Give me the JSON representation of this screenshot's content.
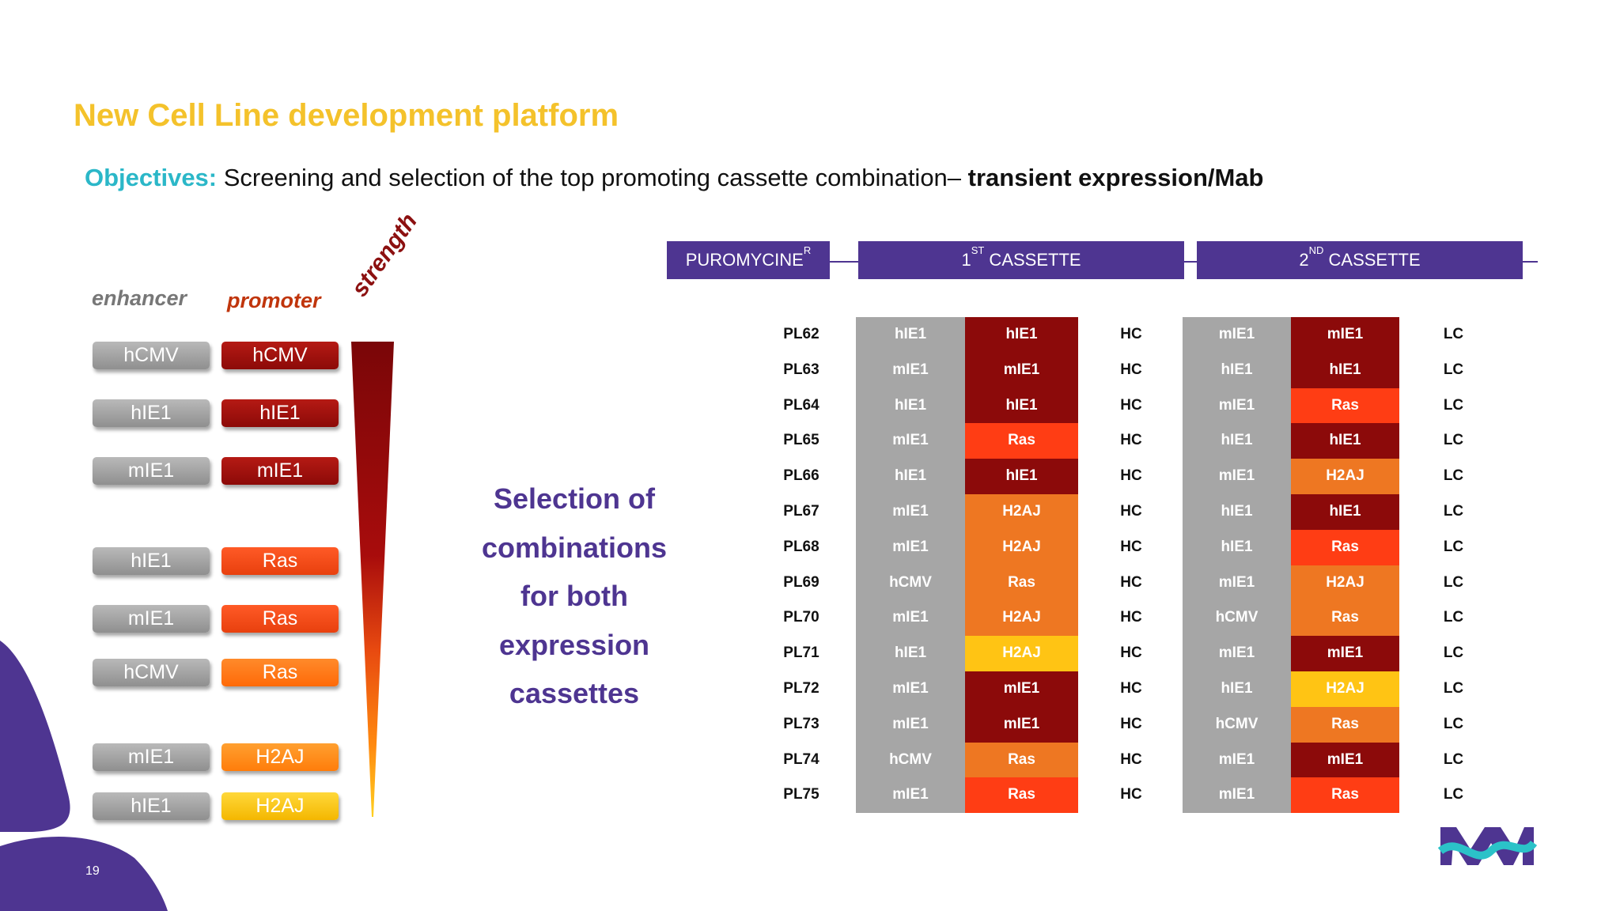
{
  "title": "New Cell Line development platform",
  "objectives": {
    "label": "Objectives:",
    "text": " Screening and selection of the top promoting cassette combination– ",
    "bold": "transient expression/Mab"
  },
  "left_panel": {
    "enhancer_header": "enhancer",
    "promoter_header": "promoter",
    "strength_label": "strength",
    "pairs": [
      {
        "enhancer": "hCMV",
        "promoter": "hCMV"
      },
      {
        "enhancer": "hIE1",
        "promoter": "hIE1"
      },
      {
        "enhancer": "mIE1",
        "promoter": "mIE1"
      },
      {
        "enhancer": "hIE1",
        "promoter": "Ras"
      },
      {
        "enhancer": "mIE1",
        "promoter": "Ras"
      },
      {
        "enhancer": "hCMV",
        "promoter": "Ras"
      },
      {
        "enhancer": "mIE1",
        "promoter": "H2AJ"
      },
      {
        "enhancer": "hIE1",
        "promoter": "H2AJ"
      }
    ]
  },
  "selection_text": [
    "Selection of",
    "combinations",
    "for both",
    "expression",
    "cassettes"
  ],
  "header_bars": {
    "puromycine": {
      "text": "PUROMYCINE",
      "sup": "R"
    },
    "cassette1": {
      "pre": "1",
      "sup": "ST",
      "post": " CASSETTE"
    },
    "cassette2": {
      "pre": "2",
      "sup": "ND",
      "post": " CASSETTE"
    }
  },
  "colors": {
    "purple": "#4e3591",
    "gray_cell": "#a6a6a6",
    "dark_red": "#8c0a0a",
    "red": "#ff3d14",
    "orange": "#ee7722",
    "yellow": "#ffc414",
    "title_yellow": "#f4c22b",
    "teal": "#2bb7c8"
  },
  "table": {
    "columns": [
      "plasmid",
      "enhancer_1",
      "promoter_1",
      "chain_1",
      "enhancer_2",
      "promoter_2",
      "chain_2"
    ],
    "rows": [
      {
        "id": "PL62",
        "e1": "hIE1",
        "p1": "hIE1",
        "p1c": "dark_red",
        "c1": "HC",
        "e2": "mIE1",
        "p2": "mIE1",
        "p2c": "dark_red",
        "c2": "LC"
      },
      {
        "id": "PL63",
        "e1": "mIE1",
        "p1": "mIE1",
        "p1c": "dark_red",
        "c1": "HC",
        "e2": "hIE1",
        "p2": "hIE1",
        "p2c": "dark_red",
        "c2": "LC"
      },
      {
        "id": "PL64",
        "e1": "hIE1",
        "p1": "hIE1",
        "p1c": "dark_red",
        "c1": "HC",
        "e2": "mIE1",
        "p2": "Ras",
        "p2c": "red",
        "c2": "LC"
      },
      {
        "id": "PL65",
        "e1": "mIE1",
        "p1": "Ras",
        "p1c": "red",
        "c1": "HC",
        "e2": "hIE1",
        "p2": "hIE1",
        "p2c": "dark_red",
        "c2": "LC"
      },
      {
        "id": "PL66",
        "e1": "hIE1",
        "p1": "hIE1",
        "p1c": "dark_red",
        "c1": "HC",
        "e2": "mIE1",
        "p2": "H2AJ",
        "p2c": "orange",
        "c2": "LC"
      },
      {
        "id": "PL67",
        "e1": "mIE1",
        "p1": "H2AJ",
        "p1c": "orange",
        "c1": "HC",
        "e2": "hIE1",
        "p2": "hIE1",
        "p2c": "dark_red",
        "c2": "LC"
      },
      {
        "id": "PL68",
        "e1": "mIE1",
        "p1": "H2AJ",
        "p1c": "orange",
        "c1": "HC",
        "e2": "hIE1",
        "p2": "Ras",
        "p2c": "red",
        "c2": "LC"
      },
      {
        "id": "PL69",
        "e1": "hCMV",
        "p1": "Ras",
        "p1c": "orange",
        "c1": "HC",
        "e2": "mIE1",
        "p2": "H2AJ",
        "p2c": "orange",
        "c2": "LC"
      },
      {
        "id": "PL70",
        "e1": "mIE1",
        "p1": "H2AJ",
        "p1c": "orange",
        "c1": "HC",
        "e2": "hCMV",
        "p2": "Ras",
        "p2c": "orange",
        "c2": "LC"
      },
      {
        "id": "PL71",
        "e1": "hIE1",
        "p1": "H2AJ",
        "p1c": "yellow",
        "c1": "HC",
        "e2": "mIE1",
        "p2": "mIE1",
        "p2c": "dark_red",
        "c2": "LC"
      },
      {
        "id": "PL72",
        "e1": "mIE1",
        "p1": "mIE1",
        "p1c": "dark_red",
        "c1": "HC",
        "e2": "hIE1",
        "p2": "H2AJ",
        "p2c": "yellow",
        "c2": "LC"
      },
      {
        "id": "PL73",
        "e1": "mIE1",
        "p1": "mIE1",
        "p1c": "dark_red",
        "c1": "HC",
        "e2": "hCMV",
        "p2": "Ras",
        "p2c": "orange",
        "c2": "LC"
      },
      {
        "id": "PL74",
        "e1": "hCMV",
        "p1": "Ras",
        "p1c": "orange",
        "c1": "HC",
        "e2": "mIE1",
        "p2": "mIE1",
        "p2c": "dark_red",
        "c2": "LC"
      },
      {
        "id": "PL75",
        "e1": "mIE1",
        "p1": "Ras",
        "p1c": "red",
        "c1": "HC",
        "e2": "mIE1",
        "p2": "Ras",
        "p2c": "red",
        "c2": "LC"
      }
    ]
  },
  "page_number": "19"
}
